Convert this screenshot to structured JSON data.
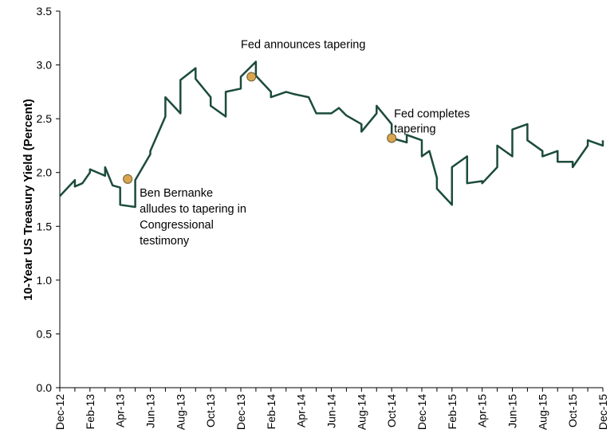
{
  "chart_data": {
    "type": "line",
    "title": "",
    "xlabel": "",
    "ylabel": "10-Year US Treasury Yield (Percent)",
    "ylim": [
      0,
      3.5
    ],
    "yticks": [
      "0.0",
      "0.5",
      "1.0",
      "1.5",
      "2.0",
      "2.5",
      "3.0",
      "3.5"
    ],
    "xlim": [
      "2012-12",
      "2015-12"
    ],
    "xticks": [
      "Dec-12",
      "Feb-13",
      "Apr-13",
      "Jun-13",
      "Aug-13",
      "Oct-13",
      "Dec-13",
      "Feb-14",
      "Apr-14",
      "Jun-14",
      "Aug-14",
      "Oct-14",
      "Dec-14",
      "Feb-15",
      "Apr-15",
      "Jun-15",
      "Aug-15",
      "Oct-15",
      "Dec-15"
    ],
    "grid": false,
    "series": [
      {
        "color": "#1c4b3c",
        "points": [
          [
            "2012-12",
            1.78
          ],
          [
            "2012-12",
            1.93
          ],
          [
            "2013-01",
            1.87
          ],
          [
            "2013-01",
            1.9
          ],
          [
            "2013-01",
            2.0
          ],
          [
            "2013-02",
            2.03
          ],
          [
            "2013-02",
            1.97
          ],
          [
            "2013-03",
            2.05
          ],
          [
            "2013-03",
            1.88
          ],
          [
            "2013-03",
            1.86
          ],
          [
            "2013-04",
            1.7
          ],
          [
            "2013-04",
            1.68
          ],
          [
            "2013-05",
            1.93
          ],
          [
            "2013-05",
            2.17
          ],
          [
            "2013-06",
            2.2
          ],
          [
            "2013-06",
            2.52
          ],
          [
            "2013-07",
            2.7
          ],
          [
            "2013-07",
            2.55
          ],
          [
            "2013-08",
            2.86
          ],
          [
            "2013-08",
            2.97
          ],
          [
            "2013-09",
            2.87
          ],
          [
            "2013-09",
            2.7
          ],
          [
            "2013-10",
            2.62
          ],
          [
            "2013-10",
            2.52
          ],
          [
            "2013-11",
            2.75
          ],
          [
            "2013-11",
            2.78
          ],
          [
            "2013-12",
            2.89
          ],
          [
            "2013-12",
            3.03
          ],
          [
            "2014-01",
            2.9
          ],
          [
            "2014-01",
            2.75
          ],
          [
            "2014-02",
            2.7
          ],
          [
            "2014-02",
            2.75
          ],
          [
            "2014-03",
            2.73
          ],
          [
            "2014-04",
            2.7
          ],
          [
            "2014-05",
            2.55
          ],
          [
            "2014-05",
            2.55
          ],
          [
            "2014-06",
            2.6
          ],
          [
            "2014-07",
            2.53
          ],
          [
            "2014-07",
            2.45
          ],
          [
            "2014-08",
            2.38
          ],
          [
            "2014-08",
            2.55
          ],
          [
            "2014-09",
            2.62
          ],
          [
            "2014-09",
            2.45
          ],
          [
            "2014-10",
            2.32
          ],
          [
            "2014-10",
            2.28
          ],
          [
            "2014-11",
            2.35
          ],
          [
            "2014-11",
            2.3
          ],
          [
            "2014-12",
            2.15
          ],
          [
            "2014-12",
            2.2
          ],
          [
            "2014-12",
            1.95
          ],
          [
            "2015-01",
            1.85
          ],
          [
            "2015-01",
            1.7
          ],
          [
            "2015-02",
            2.05
          ],
          [
            "2015-02",
            2.15
          ],
          [
            "2015-03",
            1.9
          ],
          [
            "2015-03",
            1.92
          ],
          [
            "2015-04",
            1.9
          ],
          [
            "2015-04",
            2.05
          ],
          [
            "2015-05",
            2.25
          ],
          [
            "2015-05",
            2.15
          ],
          [
            "2015-06",
            2.4
          ],
          [
            "2015-06",
            2.45
          ],
          [
            "2015-07",
            2.3
          ],
          [
            "2015-07",
            2.2
          ],
          [
            "2015-08",
            2.15
          ],
          [
            "2015-08",
            2.2
          ],
          [
            "2015-09",
            2.1
          ],
          [
            "2015-09",
            2.1
          ],
          [
            "2015-10",
            2.05
          ],
          [
            "2015-10",
            2.25
          ],
          [
            "2015-11",
            2.3
          ],
          [
            "2015-11",
            2.25
          ],
          [
            "2015-12",
            2.3
          ]
        ]
      }
    ],
    "annotations": [
      {
        "x": "2013-04",
        "y": 1.94,
        "lines": [
          "Ben Bernanke",
          "alludes to tapering in",
          "Congressional",
          "testimony"
        ]
      },
      {
        "x": "2013-12",
        "y": 2.89,
        "lines": [
          "Fed announces tapering"
        ]
      },
      {
        "x": "2014-10",
        "y": 2.32,
        "lines": [
          "Fed completes",
          "tapering"
        ]
      }
    ],
    "marker_color": "#d9a54e"
  }
}
